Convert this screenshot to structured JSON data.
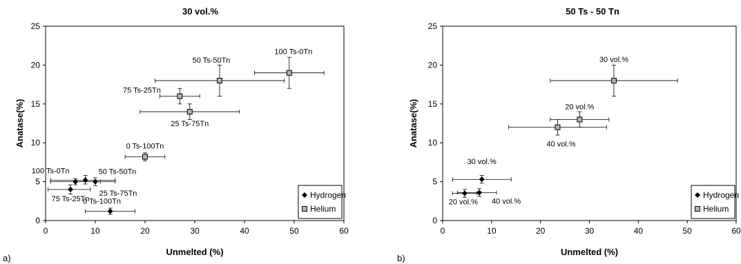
{
  "chart_data": [
    {
      "type": "scatter",
      "panel_label": "a)",
      "title": "30 vol.%",
      "xlabel": "Unmelted (%)",
      "ylabel": "Anatase(%)",
      "xlim": [
        0,
        60
      ],
      "ylim": [
        0,
        25
      ],
      "xticks": [
        "0",
        "10",
        "20",
        "30",
        "40",
        "50",
        "60"
      ],
      "yticks": [
        "0",
        "5",
        "10",
        "15",
        "20",
        "25"
      ],
      "grid": false,
      "legend_position": "bottom-right",
      "series": [
        {
          "name": "Hydrogen",
          "marker": "diamond",
          "color": "#000000",
          "points": [
            {
              "x": 6,
              "y": 5.0,
              "xerr": [
                1,
                11
              ],
              "yerr": [
                4.6,
                5.4
              ],
              "label": "100 Ts-0Tn"
            },
            {
              "x": 8,
              "y": 5.2,
              "xerr": [
                1,
                14
              ],
              "yerr": [
                4.7,
                5.8
              ],
              "label": ""
            },
            {
              "x": 10,
              "y": 5.0,
              "xerr": [
                6,
                14
              ],
              "yerr": [
                4.5,
                5.5
              ],
              "label": "50 Ts-50Tn"
            },
            {
              "x": 5,
              "y": 4.0,
              "xerr": [
                0.5,
                9
              ],
              "yerr": [
                3.4,
                4.6
              ],
              "label": "75 Ts-25Tn"
            },
            {
              "x": 13,
              "y": 1.2,
              "xerr": [
                8,
                18
              ],
              "yerr": [
                0.8,
                1.6
              ],
              "label": "0 Ts-100Tn"
            }
          ],
          "extra_labels": [
            "25 Ts-75Tn"
          ]
        },
        {
          "name": "Helium",
          "marker": "square",
          "color": "#b3b3b3",
          "points": [
            {
              "x": 49,
              "y": 19,
              "xerr": [
                42,
                56
              ],
              "yerr": [
                17,
                21
              ],
              "label": "100 Ts-0Tn"
            },
            {
              "x": 35,
              "y": 18,
              "xerr": [
                22,
                48
              ],
              "yerr": [
                16,
                20
              ],
              "label": "50 Ts-50Tn"
            },
            {
              "x": 27,
              "y": 16,
              "xerr": [
                23,
                31
              ],
              "yerr": [
                15,
                17
              ],
              "label": "75 Ts-25Tn"
            },
            {
              "x": 29,
              "y": 14,
              "xerr": [
                19,
                39
              ],
              "yerr": [
                13,
                15
              ],
              "label": "25 Ts-75Tn"
            },
            {
              "x": 20,
              "y": 8.2,
              "xerr": [
                16,
                24
              ],
              "yerr": [
                7.7,
                8.7
              ],
              "label": "0 Ts-100Tn"
            }
          ]
        }
      ]
    },
    {
      "type": "scatter",
      "panel_label": "b)",
      "title": "50 Ts - 50 Tn",
      "xlabel": "Unmelted (%)",
      "ylabel": "Anatase(%)",
      "xlim": [
        0,
        60
      ],
      "ylim": [
        0,
        25
      ],
      "xticks": [
        "0",
        "10",
        "20",
        "30",
        "40",
        "50",
        "60"
      ],
      "yticks": [
        "0",
        "5",
        "10",
        "15",
        "20",
        "25"
      ],
      "grid": false,
      "legend_position": "bottom-right",
      "series": [
        {
          "name": "Hydrogen",
          "marker": "diamond",
          "color": "#000000",
          "points": [
            {
              "x": 8,
              "y": 5.3,
              "xerr": [
                2,
                14
              ],
              "yerr": [
                4.8,
                5.8
              ],
              "label": "30 vol.%"
            },
            {
              "x": 4.5,
              "y": 3.5,
              "xerr": [
                2,
                7
              ],
              "yerr": [
                3.0,
                4.0
              ],
              "label": "20 vol.%"
            },
            {
              "x": 7.5,
              "y": 3.6,
              "xerr": [
                3,
                11
              ],
              "yerr": [
                3.1,
                4.1
              ],
              "label": "40 vol.%"
            }
          ]
        },
        {
          "name": "Helium",
          "marker": "square",
          "color": "#b3b3b3",
          "points": [
            {
              "x": 35,
              "y": 18,
              "xerr": [
                22,
                48
              ],
              "yerr": [
                16,
                20
              ],
              "label": "30 vol.%"
            },
            {
              "x": 28,
              "y": 13,
              "xerr": [
                22,
                34
              ],
              "yerr": [
                12,
                14
              ],
              "label": "20 vol.%"
            },
            {
              "x": 23.5,
              "y": 12,
              "xerr": [
                13.5,
                33.5
              ],
              "yerr": [
                11,
                13
              ],
              "label": "40 vol.%"
            }
          ]
        }
      ]
    }
  ]
}
